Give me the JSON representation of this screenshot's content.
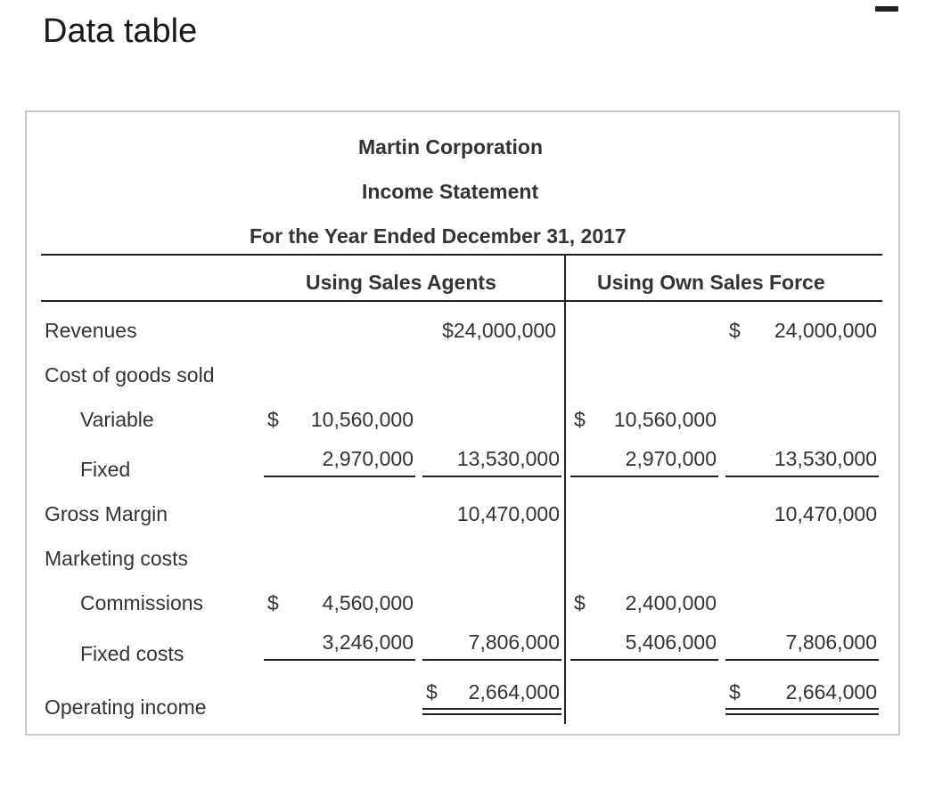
{
  "window": {
    "title": "Data table"
  },
  "statement": {
    "company": "Martin Corporation",
    "title": "Income Statement",
    "period": "For the Year Ended December 31, 2017"
  },
  "columns": {
    "agents": "Using Sales Agents",
    "own": "Using Own Sales Force"
  },
  "labels": {
    "revenues": "Revenues",
    "cogs": "Cost of goods sold",
    "variable": "Variable",
    "fixed": "Fixed",
    "gross_margin": "Gross Margin",
    "marketing": "Marketing costs",
    "commissions": "Commissions",
    "fixed_costs": "Fixed costs",
    "operating_income": "Operating income"
  },
  "agents": {
    "revenues": "$24,000,000",
    "variable_cur": "$",
    "variable": "10,560,000",
    "fixed": "2,970,000",
    "cogs_total": "13,530,000",
    "gross_margin": "10,470,000",
    "commissions_cur": "$",
    "commissions": "4,560,000",
    "fixed_costs": "3,246,000",
    "marketing_total": "7,806,000",
    "operating_cur": "$",
    "operating_income": "2,664,000"
  },
  "own": {
    "revenues_cur": "$",
    "revenues": "24,000,000",
    "variable_cur": "$",
    "variable": "10,560,000",
    "fixed": "2,970,000",
    "cogs_total": "13,530,000",
    "gross_margin": "10,470,000",
    "commissions_cur": "$",
    "commissions": "2,400,000",
    "fixed_costs": "5,406,000",
    "marketing_total": "7,806,000",
    "operating_cur": "$",
    "operating_income": "2,664,000"
  }
}
